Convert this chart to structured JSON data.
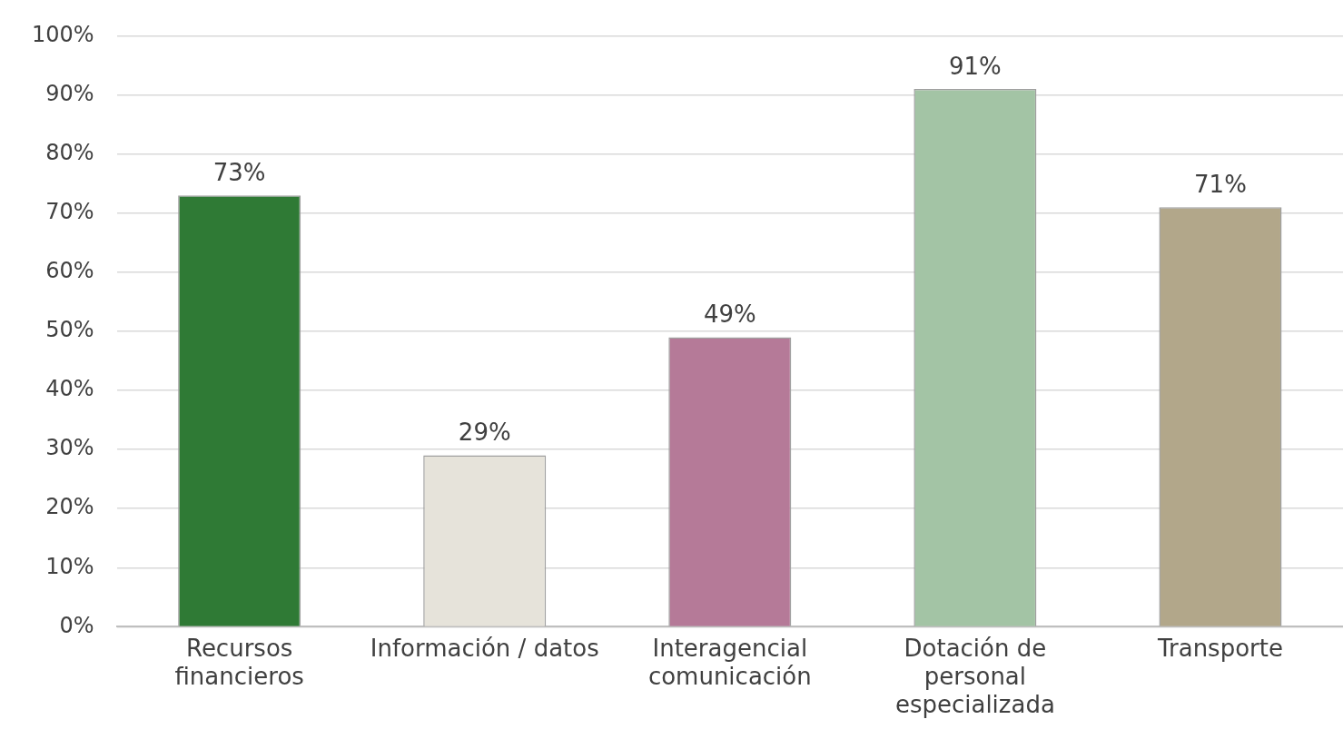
{
  "chart_data": {
    "type": "bar",
    "categories": [
      "Recursos\nfinancieros",
      "Información / datos",
      "Interagencial\ncomunicación",
      "Dotación de\npersonal\nespecializada",
      "Transporte"
    ],
    "values": [
      73,
      29,
      49,
      91,
      71
    ],
    "value_labels": [
      "73%",
      "29%",
      "49%",
      "91%",
      "71%"
    ],
    "colors": [
      "#2f7a35",
      "#e6e3da",
      "#b57a98",
      "#a3c4a5",
      "#b2a78a"
    ],
    "ylim": [
      0,
      100
    ],
    "yticks": [
      {
        "value": 0,
        "label": "0%"
      },
      {
        "value": 10,
        "label": "10%"
      },
      {
        "value": 20,
        "label": "20%"
      },
      {
        "value": 30,
        "label": "30%"
      },
      {
        "value": 40,
        "label": "40%"
      },
      {
        "value": 50,
        "label": "50%"
      },
      {
        "value": 60,
        "label": "60%"
      },
      {
        "value": 70,
        "label": "70%"
      },
      {
        "value": 80,
        "label": "80%"
      },
      {
        "value": 90,
        "label": "90%"
      },
      {
        "value": 100,
        "label": "100%"
      }
    ],
    "grid": "y",
    "legend": false
  }
}
